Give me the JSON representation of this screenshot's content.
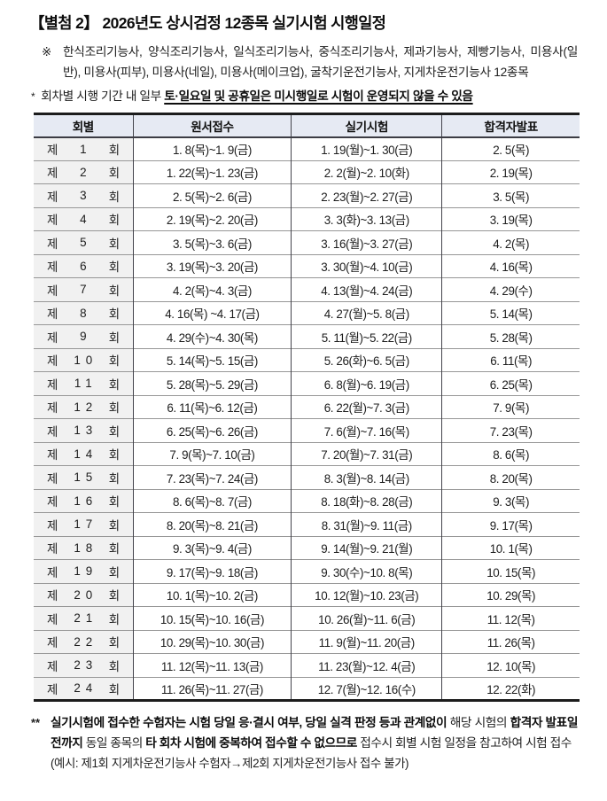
{
  "title": "【별첨 2】 2026년도 상시검정 12종목 실기시험 시행일정",
  "subjects_note": {
    "marker": "※",
    "text": "한식조리기능사, 양식조리기능사, 일식조리기능사, 중식조리기능사, 제과기능사, 제빵기능사, 미용사(일반), 미용사(피부), 미용사(네일), 미용사(메이크업), 굴착기운전기능사, 지게차운전기능사 12종목"
  },
  "schedule_note": {
    "marker": "*",
    "plain": "회차별 시행 기간 내 일부 ",
    "emphasized": "토·일요일 및 공휴일은 미시행일로 시험이 운영되지 않을 수 있음"
  },
  "table": {
    "headers": [
      "회별",
      "원서접수",
      "실기시험",
      "합격자발표"
    ],
    "round_prefix": "제",
    "round_suffix": "회",
    "rows": [
      {
        "no": "1",
        "apply": "1. 8(목)~1. 9(금)",
        "exam": "1. 19(월)~1. 30(금)",
        "announce": "2. 5(목)"
      },
      {
        "no": "2",
        "apply": "1. 22(목)~1. 23(금)",
        "exam": "2. 2(월)~2. 10(화)",
        "announce": "2. 19(목)"
      },
      {
        "no": "3",
        "apply": "2. 5(목)~2. 6(금)",
        "exam": "2. 23(월)~2. 27(금)",
        "announce": "3. 5(목)"
      },
      {
        "no": "4",
        "apply": "2. 19(목)~2. 20(금)",
        "exam": "3. 3(화)~3. 13(금)",
        "announce": "3. 19(목)"
      },
      {
        "no": "5",
        "apply": "3. 5(목)~3. 6(금)",
        "exam": "3. 16(월)~3. 27(금)",
        "announce": "4. 2(목)"
      },
      {
        "no": "6",
        "apply": "3. 19(목)~3. 20(금)",
        "exam": "3. 30(월)~4. 10(금)",
        "announce": "4. 16(목)"
      },
      {
        "no": "7",
        "apply": "4. 2(목)~4. 3(금)",
        "exam": "4. 13(월)~4. 24(금)",
        "announce": "4. 29(수)"
      },
      {
        "no": "8",
        "apply": "4. 16(목) ~4. 17(금)",
        "exam": "4. 27(월)~5. 8(금)",
        "announce": "5. 14(목)"
      },
      {
        "no": "9",
        "apply": "4. 29(수)~4. 30(목)",
        "exam": "5. 11(월)~5. 22(금)",
        "announce": "5. 28(목)"
      },
      {
        "no": "10",
        "apply": "5. 14(목)~5. 15(금)",
        "exam": "5. 26(화)~6. 5(금)",
        "announce": "6. 11(목)"
      },
      {
        "no": "11",
        "apply": "5. 28(목)~5. 29(금)",
        "exam": "6. 8(월)~6. 19(금)",
        "announce": "6. 25(목)"
      },
      {
        "no": "12",
        "apply": "6. 11(목)~6. 12(금)",
        "exam": "6. 22(월)~7. 3(금)",
        "announce": "7. 9(목)"
      },
      {
        "no": "13",
        "apply": "6. 25(목)~6. 26(금)",
        "exam": "7. 6(월)~7. 16(목)",
        "announce": "7. 23(목)"
      },
      {
        "no": "14",
        "apply": "7. 9(목)~7. 10(금)",
        "exam": "7. 20(월)~7. 31(금)",
        "announce": "8. 6(목)"
      },
      {
        "no": "15",
        "apply": "7. 23(목)~7. 24(금)",
        "exam": "8. 3(월)~8. 14(금)",
        "announce": "8. 20(목)"
      },
      {
        "no": "16",
        "apply": "8. 6(목)~8. 7(금)",
        "exam": "8. 18(화)~8. 28(금)",
        "announce": "9. 3(목)"
      },
      {
        "no": "17",
        "apply": "8. 20(목)~8. 21(금)",
        "exam": "8. 31(월)~9. 11(금)",
        "announce": "9. 17(목)"
      },
      {
        "no": "18",
        "apply": "9. 3(목)~9. 4(금)",
        "exam": "9. 14(월)~9. 21(월)",
        "announce": "10. 1(목)"
      },
      {
        "no": "19",
        "apply": "9. 17(목)~9. 18(금)",
        "exam": "9. 30(수)~10. 8(목)",
        "announce": "10. 15(목)"
      },
      {
        "no": "20",
        "apply": "10. 1(목)~10. 2(금)",
        "exam": "10. 12(월)~10. 23(금)",
        "announce": "10. 29(목)"
      },
      {
        "no": "21",
        "apply": "10. 15(목)~10. 16(금)",
        "exam": "10. 26(월)~11. 6(금)",
        "announce": "11. 12(목)"
      },
      {
        "no": "22",
        "apply": "10. 29(목)~10. 30(금)",
        "exam": "11. 9(월)~11. 20(금)",
        "announce": "11. 26(목)"
      },
      {
        "no": "23",
        "apply": "11. 12(목)~11. 13(금)",
        "exam": "11. 23(월)~12. 4(금)",
        "announce": "12. 10(목)"
      },
      {
        "no": "24",
        "apply": "11. 26(목)~11. 27(금)",
        "exam": "12. 7(월)~12. 16(수)",
        "announce": "12. 22(화)"
      }
    ]
  },
  "footer_note": {
    "marker": "**",
    "segments": [
      {
        "text": "실기시험에 접수한 수험자는 시험 당일 응·결시 여부, 당일 실격 판정 등과 관계없이",
        "bold": true
      },
      {
        "text": " 해당 시험의 ",
        "bold": false
      },
      {
        "text": "합격자 발표일전까지",
        "bold": true
      },
      {
        "text": " 동일 종목의 ",
        "bold": false
      },
      {
        "text": "타 회차 시험에 중복하여 접수할 수 없으므로",
        "bold": true
      },
      {
        "text": " 접수시 회별 시험 일정을 참고하여 시험 접수",
        "bold": false
      }
    ],
    "example": "(예시: 제1회 지게차운전기능사 수험자→제2회 지게차운전기능사 접수 불가)"
  },
  "colors": {
    "header_bg": "#e6eaf3",
    "round_col_bg": "#f1f1f1",
    "table_outer_border": "#1c1c1c",
    "column_divider": "#44444c",
    "row_divider": "#979797",
    "text": "#1d1d1d"
  }
}
